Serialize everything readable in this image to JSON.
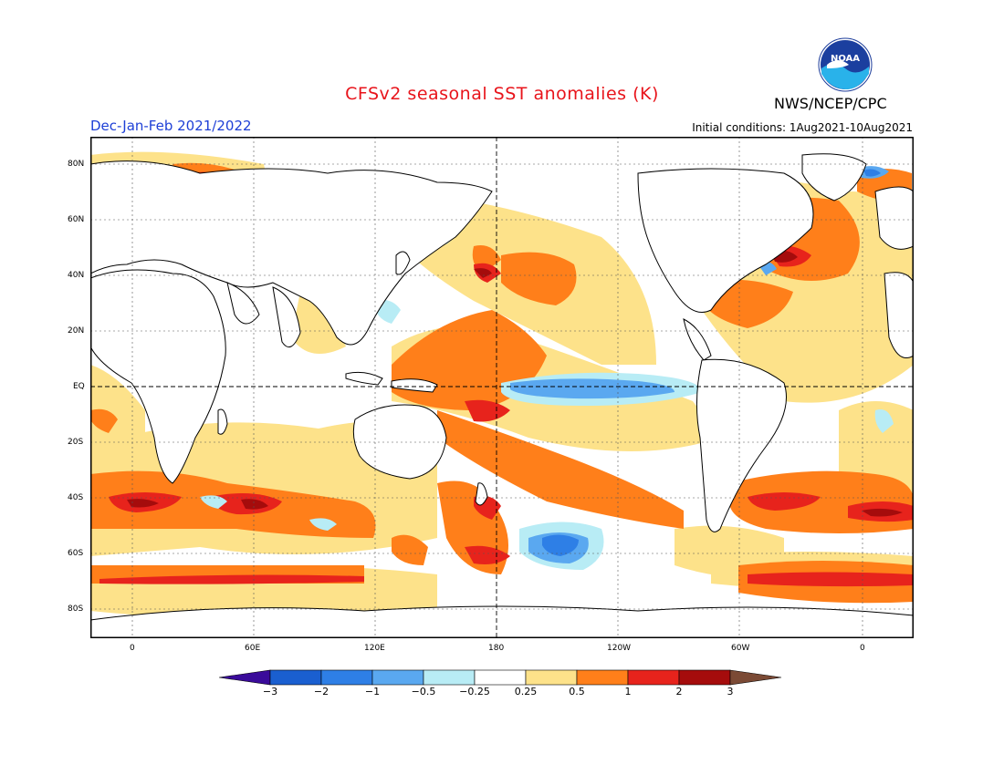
{
  "title": "CFSv2 seasonal SST anomalies (K)",
  "season": "Dec-Jan-Feb 2021/2022",
  "initial_conditions": "Initial conditions: 1Aug2021-10Aug2021",
  "agency": "NWS/NCEP/CPC",
  "logo_text": "NOAA",
  "map": {
    "lon_labels": [
      "0",
      "60E",
      "120E",
      "180",
      "120W",
      "60W",
      "0"
    ],
    "lat_labels": [
      "80N",
      "60N",
      "40N",
      "20N",
      "EQ",
      "20S",
      "40S",
      "60S",
      "80S"
    ]
  },
  "colorbar": {
    "labels": [
      "-3",
      "-2",
      "-1",
      "-0.5",
      "-0.25",
      "0.25",
      "0.5",
      "1",
      "2",
      "3"
    ],
    "colors": [
      "#3a0b9a",
      "#1a5fd0",
      "#2e7fe6",
      "#5aa8f0",
      "#b8ecf5",
      "#ffffff",
      "#fde28a",
      "#ff7f1a",
      "#e7231c",
      "#a50c0c",
      "#7b4a35"
    ]
  },
  "palette": {
    "pale_yellow": "#fde28a",
    "orange": "#ff7f1a",
    "red": "#e7231c",
    "dark_red": "#a50c0c",
    "light_cyan": "#b8ecf5",
    "light_blue": "#5aa8f0",
    "blue": "#2e7fe6",
    "dark_blue": "#1a5fd0",
    "title_red": "#e8141b",
    "season_blue": "#1d3fd6"
  }
}
